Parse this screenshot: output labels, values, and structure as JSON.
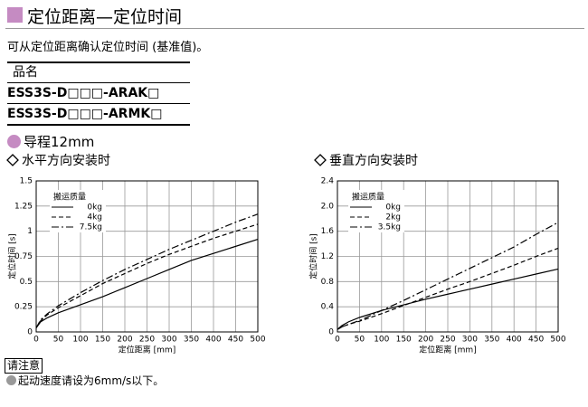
{
  "header": {
    "title": "定位距离—定位时间",
    "description": "可从定位距离确认定位时间 (基准值)。"
  },
  "table": {
    "header": "品名",
    "rows": [
      "ESS3S-D□□□-ARAK□",
      "ESS3S-D□□□-ARMK□"
    ]
  },
  "section": "导程12mm",
  "chart_data": [
    {
      "type": "line",
      "title": "水平方向安装时",
      "xlabel": "定位距离 [mm]",
      "ylabel": "定位时间 [s]",
      "x": [
        0,
        10,
        25,
        50,
        100,
        150,
        200,
        250,
        300,
        350,
        400,
        450,
        500
      ],
      "xlim": [
        0,
        500
      ],
      "xticks": [
        0,
        50,
        100,
        150,
        200,
        250,
        300,
        350,
        400,
        450,
        500
      ],
      "ylim": [
        0,
        1.5
      ],
      "yticks": [
        0,
        0.25,
        0.5,
        0.75,
        1,
        1.25,
        1.5
      ],
      "grid": true,
      "legend_title": "搬运质量",
      "series": [
        {
          "name": "0kg",
          "color": "#000000",
          "line_style": "solid",
          "values": [
            0.04,
            0.1,
            0.14,
            0.19,
            0.27,
            0.35,
            0.44,
            0.53,
            0.62,
            0.71,
            0.78,
            0.85,
            0.92
          ]
        },
        {
          "name": "4kg",
          "color": "#000000",
          "line_style": "dashed",
          "values": [
            0.04,
            0.11,
            0.17,
            0.24,
            0.36,
            0.48,
            0.58,
            0.68,
            0.77,
            0.85,
            0.93,
            1.0,
            1.07
          ]
        },
        {
          "name": "7.5kg",
          "color": "#000000",
          "line_style": "dashdot",
          "values": [
            0.04,
            0.12,
            0.18,
            0.26,
            0.39,
            0.51,
            0.62,
            0.72,
            0.82,
            0.91,
            1.0,
            1.09,
            1.17
          ]
        }
      ]
    },
    {
      "type": "line",
      "title": "垂直方向安装时",
      "xlabel": "定位距离 [mm]",
      "ylabel": "定位时间 [s]",
      "x": [
        0,
        10,
        25,
        50,
        100,
        150,
        200,
        250,
        300,
        350,
        400,
        450,
        500
      ],
      "xlim": [
        0,
        500
      ],
      "xticks": [
        0,
        50,
        100,
        150,
        200,
        250,
        300,
        350,
        400,
        450,
        500
      ],
      "ylim": [
        0,
        2.4
      ],
      "yticks": [
        0,
        0.4,
        0.8,
        1.2,
        1.6,
        {
          "value": 2,
          "label": "2.0"
        },
        2.4
      ],
      "grid": true,
      "legend_title": "搬运质量",
      "series": [
        {
          "name": "0kg",
          "color": "#000000",
          "line_style": "solid",
          "values": [
            0.04,
            0.1,
            0.16,
            0.23,
            0.34,
            0.43,
            0.52,
            0.6,
            0.68,
            0.76,
            0.84,
            0.92,
            1.0
          ]
        },
        {
          "name": "2kg",
          "color": "#000000",
          "line_style": "dashed",
          "values": [
            0.04,
            0.08,
            0.12,
            0.17,
            0.29,
            0.42,
            0.55,
            0.68,
            0.8,
            0.93,
            1.06,
            1.2,
            1.33
          ]
        },
        {
          "name": "3.5kg",
          "color": "#000000",
          "line_style": "dashdot",
          "values": [
            0.04,
            0.08,
            0.12,
            0.18,
            0.34,
            0.5,
            0.67,
            0.84,
            1.01,
            1.18,
            1.35,
            1.55,
            1.74
          ]
        }
      ]
    }
  ],
  "note": {
    "label": "请注意",
    "text": "起动速度请设为6mm/s以下。"
  }
}
